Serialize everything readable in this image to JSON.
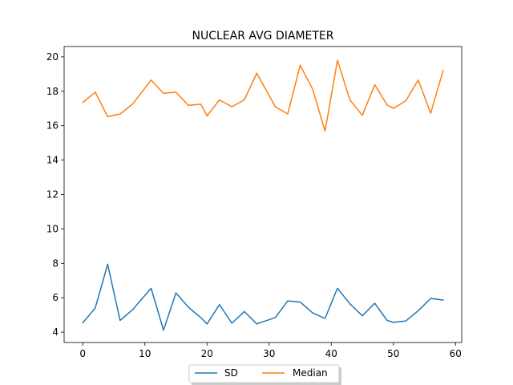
{
  "chart_data": {
    "type": "line",
    "title": "NUCLEAR AVG DIAMETER",
    "xlabel": "",
    "ylabel": "",
    "xlim": [
      -3,
      61
    ],
    "ylim": [
      3.4,
      20.6
    ],
    "xticks": [
      0,
      10,
      20,
      30,
      40,
      50,
      60
    ],
    "yticks": [
      4,
      6,
      8,
      10,
      12,
      14,
      16,
      18,
      20
    ],
    "legend_position": "bottom-center",
    "series": [
      {
        "name": "SD",
        "color": "#1f77b4",
        "x": [
          0,
          2,
          4,
          6,
          8,
          11,
          13,
          15,
          17,
          19,
          20,
          22,
          24,
          26,
          28,
          31,
          33,
          35,
          37,
          39,
          41,
          43,
          45,
          47,
          49,
          50,
          52,
          54,
          56,
          58
        ],
        "y": [
          4.55,
          5.4,
          7.95,
          4.68,
          5.3,
          6.55,
          4.12,
          6.28,
          5.45,
          4.85,
          4.48,
          5.6,
          4.52,
          5.2,
          4.48,
          4.85,
          5.82,
          5.75,
          5.12,
          4.8,
          6.55,
          5.65,
          4.95,
          5.68,
          4.68,
          4.57,
          4.65,
          5.25,
          5.96,
          5.87
        ]
      },
      {
        "name": "Median",
        "color": "#ff7f0e",
        "x": [
          0,
          2,
          4,
          6,
          8,
          11,
          13,
          15,
          17,
          19,
          20,
          22,
          24,
          26,
          28,
          31,
          33,
          35,
          37,
          39,
          41,
          43,
          45,
          47,
          49,
          50,
          52,
          54,
          56,
          58
        ],
        "y": [
          17.35,
          17.95,
          16.52,
          16.68,
          17.25,
          18.65,
          17.88,
          17.95,
          17.18,
          17.25,
          16.57,
          17.5,
          17.1,
          17.5,
          19.05,
          17.1,
          16.68,
          19.52,
          18.12,
          15.68,
          19.8,
          17.5,
          16.6,
          18.38,
          17.2,
          17.0,
          17.45,
          18.65,
          16.72,
          19.2
        ]
      }
    ]
  }
}
